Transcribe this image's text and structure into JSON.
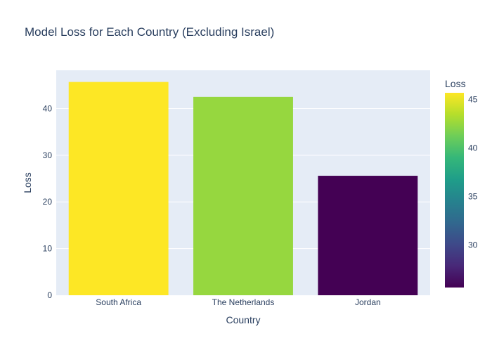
{
  "chart_data": {
    "type": "bar",
    "title": "Model Loss for Each Country (Excluding Israel)",
    "xlabel": "Country",
    "ylabel": "Loss",
    "categories": [
      "South Africa",
      "The Netherlands",
      "Jordan"
    ],
    "values": [
      45.7,
      42.5,
      25.6
    ],
    "ylim": [
      0,
      48.2
    ],
    "yticks": [
      0,
      10,
      20,
      30,
      40
    ],
    "grid": true,
    "colorbar": {
      "title": "Loss",
      "colorscale": "Viridis",
      "range": [
        25.6,
        45.7
      ],
      "ticks": [
        30,
        35,
        40,
        45
      ]
    },
    "colors": {
      "plot_bg": "#e5ecf6",
      "grid": "#ffffff",
      "text": "#2a3f5f"
    }
  }
}
